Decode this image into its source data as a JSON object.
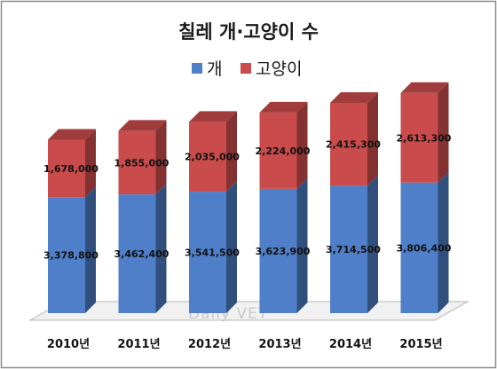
{
  "chart_data": {
    "type": "bar",
    "stacked": true,
    "title": "칠레 개·고양이 수",
    "categories": [
      "2010년",
      "2011년",
      "2012년",
      "2013년",
      "2014년",
      "2015년"
    ],
    "series": [
      {
        "name": "개",
        "color": "#4f7fc8",
        "values": [
          3378800,
          3462400,
          3541500,
          3623900,
          3714500,
          3806400
        ],
        "labels": [
          "3,378,800",
          "3,462,400",
          "3,541,500",
          "3,623,900",
          "3,714,500",
          "3,806,400"
        ]
      },
      {
        "name": "고양이",
        "color": "#c94b4b",
        "values": [
          1678000,
          1855000,
          2035000,
          2224000,
          2415300,
          2613300
        ],
        "labels": [
          "1,678,000",
          "1,855,000",
          "2,035,000",
          "2,224,000",
          "2,415,300",
          "2,613,300"
        ]
      }
    ],
    "ylim": [
      0,
      7000000
    ],
    "legend": "top-center",
    "grid": false,
    "style": "3d-stacked-column"
  },
  "watermark": "Daily VET"
}
